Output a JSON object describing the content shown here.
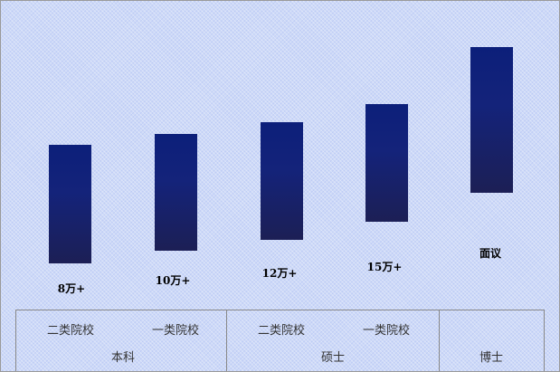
{
  "chart_data": {
    "type": "bar",
    "subtype": "floating-range",
    "categories": [
      {
        "sub": "二类院校",
        "group": "本科",
        "label": "8万+"
      },
      {
        "sub": "一类院校",
        "group": "本科",
        "label": "10万+"
      },
      {
        "sub": "二类院校",
        "group": "硕士",
        "label": "12万+"
      },
      {
        "sub": "一类院校",
        "group": "硕士",
        "label": "15万+"
      },
      {
        "sub": "",
        "group": "博士",
        "label": "面议"
      }
    ],
    "groups": [
      "本科",
      "硕士",
      "博士"
    ],
    "bar_color": "#14237a",
    "grid": false,
    "legend": "none"
  }
}
